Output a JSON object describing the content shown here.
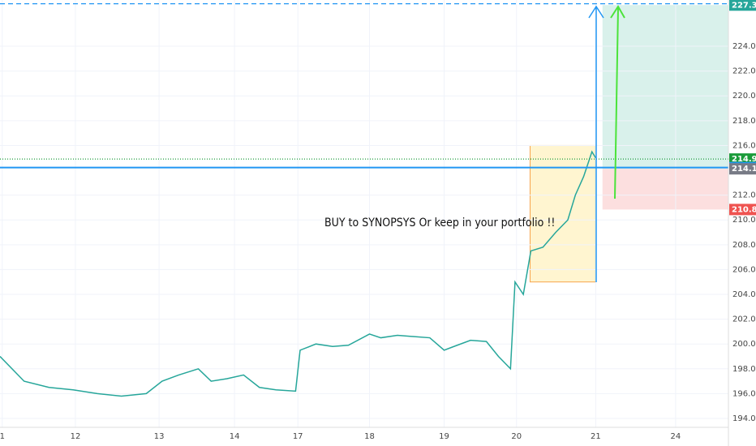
{
  "chart_data": {
    "type": "line",
    "annotation": "BUY to SYNOPSYS Or keep in your portfolio !!",
    "xlim": [
      0,
      9.66
    ],
    "xticks": [
      {
        "value": 0.03,
        "label": "1"
      },
      {
        "value": 1.0,
        "label": "12"
      },
      {
        "value": 2.11,
        "label": "13"
      },
      {
        "value": 3.11,
        "label": "14"
      },
      {
        "value": 3.95,
        "label": "17"
      },
      {
        "value": 4.9,
        "label": "18"
      },
      {
        "value": 5.89,
        "label": "19"
      },
      {
        "value": 6.85,
        "label": "20"
      },
      {
        "value": 7.9,
        "label": "21"
      },
      {
        "value": 8.96,
        "label": "24"
      }
    ],
    "ylim": [
      193.28,
      227.73
    ],
    "yticks": [
      {
        "value": 194,
        "label": "194.00"
      },
      {
        "value": 196,
        "label": "196.00"
      },
      {
        "value": 198,
        "label": "198.00"
      },
      {
        "value": 200,
        "label": "200.00"
      },
      {
        "value": 202,
        "label": "202.00"
      },
      {
        "value": 204,
        "label": "204.00"
      },
      {
        "value": 206,
        "label": "206.00"
      },
      {
        "value": 208,
        "label": "208.00"
      },
      {
        "value": 210,
        "label": "210.00"
      },
      {
        "value": 212,
        "label": "212.00"
      },
      {
        "value": 216,
        "label": "216.00"
      },
      {
        "value": 218,
        "label": "218.00"
      },
      {
        "value": 220,
        "label": "220.00"
      },
      {
        "value": 222,
        "label": "222.00"
      },
      {
        "value": 224,
        "label": "224.00"
      }
    ],
    "series": [
      {
        "color": "#26a69a",
        "x": [
          0,
          0.32,
          0.65,
          0.97,
          1.29,
          1.61,
          1.94,
          2.15,
          2.37,
          2.63,
          2.8,
          3.01,
          3.23,
          3.44,
          3.66,
          3.92,
          3.98,
          4.19,
          4.41,
          4.62,
          4.9,
          5.05,
          5.27,
          5.48,
          5.7,
          5.89,
          6.02,
          6.24,
          6.45,
          6.61,
          6.77,
          6.83,
          6.94,
          7.04,
          7.2,
          7.37,
          7.53,
          7.63,
          7.74,
          7.85,
          7.9
        ],
        "values": [
          199,
          197,
          196.5,
          196.3,
          196,
          195.8,
          196,
          197,
          197.5,
          198,
          197,
          197.2,
          197.5,
          196.5,
          196.3,
          196.2,
          199.5,
          200,
          199.8,
          199.9,
          200.8,
          200.5,
          200.7,
          200.6,
          200.5,
          199.5,
          199.8,
          200.3,
          200.2,
          199,
          198,
          205,
          204,
          207.5,
          207.8,
          209,
          210,
          212,
          213.5,
          215.5,
          215
        ]
      }
    ],
    "price_labels": [
      {
        "value": 227.43,
        "color": "#2196f3",
        "style": "dashed"
      },
      {
        "value": 227.32,
        "color": "#26a69a"
      },
      {
        "value": 214.91,
        "color": "#1b9b3a",
        "style": "dotted"
      },
      {
        "value": 214.22,
        "color": "#2196f3",
        "style": "solid"
      },
      {
        "value": 214.12,
        "color": "#787b86"
      },
      {
        "value": 210.84,
        "color": "#ef5350"
      }
    ],
    "zones": [
      {
        "x": [
          7.03,
          7.9
        ],
        "y": [
          205,
          216
        ],
        "color": "#fff3c4",
        "stroke": "#f7a44b"
      },
      {
        "x": [
          7.99,
          9.66
        ],
        "y": [
          214.12,
          227.32
        ],
        "color": "#cfeee6"
      },
      {
        "x": [
          7.99,
          9.66
        ],
        "y": [
          210.84,
          214.12
        ],
        "color": "#fbd7d7"
      }
    ]
  }
}
